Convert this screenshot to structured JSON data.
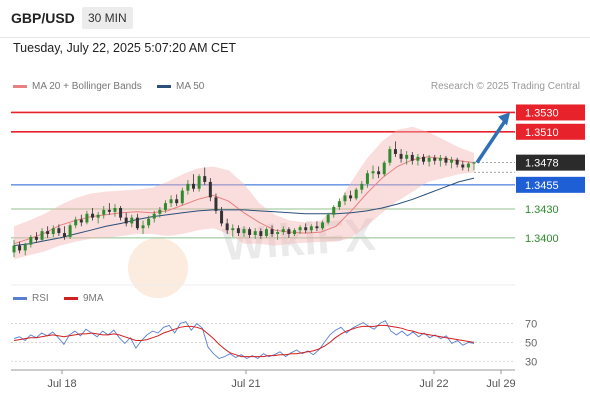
{
  "header": {
    "symbol": "GBP/USD",
    "timeframe": "30 MIN"
  },
  "datetime": "Tuesday, July 22, 2025 5:07:20 AM CET",
  "copyright": "Research © 2025 Trading Central",
  "watermark": "WikiFX",
  "colors": {
    "resistance": "#e8222a",
    "support_line": "#1f5fd6",
    "support_level": "#8fc08f",
    "support_text": "#2e8b2e",
    "last": "#2b2b2b",
    "ma20": "#e88080",
    "ma50": "#2a4f7a",
    "rsi": "#5b7fd0",
    "rsi_ma": "#d02020",
    "bullish": "#2e8b2e",
    "bearish": "#333333",
    "arrow": "#2f6fb5"
  },
  "chart_data": [
    {
      "type": "candlestick",
      "title": "GBP/USD",
      "x_ticks": [
        "Jul 18",
        "Jul 21",
        "Jul 22",
        "Jul 29"
      ],
      "legend": [
        "MA 20 + Bollinger Bands",
        "MA 50"
      ],
      "levels": [
        {
          "label": "1.3530",
          "value": 1.353,
          "kind": "resistance"
        },
        {
          "label": "1.3510",
          "value": 1.351,
          "kind": "resistance"
        },
        {
          "label": "1.3478",
          "value": 1.3478,
          "kind": "last"
        },
        {
          "label": "1.3455",
          "value": 1.3455,
          "kind": "support_line"
        },
        {
          "label": "1.3430",
          "value": 1.343,
          "kind": "support"
        },
        {
          "label": "1.3400",
          "value": 1.34,
          "kind": "support"
        }
      ],
      "ylim": [
        1.3375,
        1.3545
      ],
      "arrow": {
        "from": 1.3478,
        "to": 1.353
      },
      "candles": [
        [
          1.3385,
          1.3398,
          1.338,
          1.3392
        ],
        [
          1.3392,
          1.3396,
          1.3384,
          1.3387
        ],
        [
          1.3387,
          1.3395,
          1.3382,
          1.3393
        ],
        [
          1.3393,
          1.3403,
          1.339,
          1.3401
        ],
        [
          1.3401,
          1.3406,
          1.3395,
          1.3398
        ],
        [
          1.3398,
          1.341,
          1.3396,
          1.3407
        ],
        [
          1.3407,
          1.3412,
          1.34,
          1.3404
        ],
        [
          1.3404,
          1.3413,
          1.3401,
          1.341
        ],
        [
          1.341,
          1.3414,
          1.3402,
          1.3405
        ],
        [
          1.3405,
          1.3412,
          1.3398,
          1.3401
        ],
        [
          1.3401,
          1.3415,
          1.3399,
          1.3413
        ],
        [
          1.3413,
          1.3422,
          1.341,
          1.3419
        ],
        [
          1.3419,
          1.3424,
          1.3412,
          1.3416
        ],
        [
          1.3416,
          1.3428,
          1.3414,
          1.3425
        ],
        [
          1.3425,
          1.3431,
          1.3418,
          1.3421
        ],
        [
          1.3421,
          1.3427,
          1.3415,
          1.3424
        ],
        [
          1.3424,
          1.3433,
          1.342,
          1.3429
        ],
        [
          1.3429,
          1.3436,
          1.3424,
          1.3427
        ],
        [
          1.3427,
          1.3435,
          1.3422,
          1.3431
        ],
        [
          1.3431,
          1.3433,
          1.3418,
          1.3421
        ],
        [
          1.3421,
          1.3426,
          1.3412,
          1.3415
        ],
        [
          1.3415,
          1.3424,
          1.3411,
          1.3421
        ],
        [
          1.3421,
          1.3425,
          1.3408,
          1.341
        ],
        [
          1.341,
          1.3418,
          1.3404,
          1.3413
        ],
        [
          1.3413,
          1.3423,
          1.341,
          1.342
        ],
        [
          1.342,
          1.3428,
          1.3416,
          1.3425
        ],
        [
          1.3425,
          1.3432,
          1.3421,
          1.3429
        ],
        [
          1.3429,
          1.3439,
          1.3426,
          1.3436
        ],
        [
          1.3436,
          1.3444,
          1.3432,
          1.344
        ],
        [
          1.344,
          1.3445,
          1.3433,
          1.3436
        ],
        [
          1.3436,
          1.3452,
          1.3434,
          1.3449
        ],
        [
          1.3449,
          1.346,
          1.3445,
          1.3456
        ],
        [
          1.3456,
          1.3466,
          1.3448,
          1.3451
        ],
        [
          1.3451,
          1.3466,
          1.3448,
          1.3464
        ],
        [
          1.3464,
          1.3473,
          1.3455,
          1.3458
        ],
        [
          1.3458,
          1.3462,
          1.3438,
          1.3442
        ],
        [
          1.3442,
          1.3446,
          1.3425,
          1.3428
        ],
        [
          1.3428,
          1.3432,
          1.3412,
          1.3415
        ],
        [
          1.3415,
          1.342,
          1.3404,
          1.3408
        ],
        [
          1.3408,
          1.3414,
          1.3401,
          1.341
        ],
        [
          1.341,
          1.3413,
          1.3402,
          1.3405
        ],
        [
          1.3405,
          1.3412,
          1.3401,
          1.3409
        ],
        [
          1.3409,
          1.3411,
          1.34,
          1.3403
        ],
        [
          1.3403,
          1.341,
          1.3399,
          1.3407
        ],
        [
          1.3407,
          1.341,
          1.3399,
          1.3402
        ],
        [
          1.3402,
          1.3411,
          1.34,
          1.3409
        ],
        [
          1.3409,
          1.3413,
          1.3401,
          1.3404
        ],
        [
          1.3404,
          1.3409,
          1.3398,
          1.3406
        ],
        [
          1.3406,
          1.3412,
          1.3403,
          1.3409
        ],
        [
          1.3409,
          1.3411,
          1.34,
          1.3404
        ],
        [
          1.3404,
          1.341,
          1.3402,
          1.3408
        ],
        [
          1.3408,
          1.3413,
          1.3404,
          1.3411
        ],
        [
          1.3411,
          1.3415,
          1.3405,
          1.3408
        ],
        [
          1.3408,
          1.3414,
          1.3405,
          1.3412
        ],
        [
          1.3412,
          1.3417,
          1.3407,
          1.341
        ],
        [
          1.341,
          1.3418,
          1.3408,
          1.3416
        ],
        [
          1.3416,
          1.3426,
          1.3414,
          1.3424
        ],
        [
          1.3424,
          1.3434,
          1.3421,
          1.3432
        ],
        [
          1.3432,
          1.3441,
          1.3429,
          1.3438
        ],
        [
          1.3438,
          1.3447,
          1.3434,
          1.3444
        ],
        [
          1.3444,
          1.3449,
          1.3438,
          1.3441
        ],
        [
          1.3441,
          1.3452,
          1.3439,
          1.345
        ],
        [
          1.345,
          1.3459,
          1.3446,
          1.3456
        ],
        [
          1.3456,
          1.347,
          1.3452,
          1.3467
        ],
        [
          1.3467,
          1.3475,
          1.3461,
          1.3469
        ],
        [
          1.3469,
          1.3474,
          1.3462,
          1.3466
        ],
        [
          1.3466,
          1.348,
          1.3464,
          1.3478
        ],
        [
          1.3478,
          1.3495,
          1.3475,
          1.3492
        ],
        [
          1.3492,
          1.35,
          1.3484,
          1.3487
        ],
        [
          1.3487,
          1.3492,
          1.3478,
          1.3482
        ],
        [
          1.3482,
          1.349,
          1.3476,
          1.3486
        ],
        [
          1.3486,
          1.3489,
          1.3476,
          1.348
        ],
        [
          1.348,
          1.3487,
          1.3475,
          1.3484
        ],
        [
          1.3484,
          1.3487,
          1.3476,
          1.3479
        ],
        [
          1.3479,
          1.3486,
          1.3474,
          1.3483
        ],
        [
          1.3483,
          1.3486,
          1.3476,
          1.348
        ],
        [
          1.348,
          1.3486,
          1.3474,
          1.3483
        ],
        [
          1.3483,
          1.3485,
          1.3475,
          1.3478
        ],
        [
          1.3478,
          1.3484,
          1.3472,
          1.3481
        ],
        [
          1.3481,
          1.3483,
          1.3473,
          1.3476
        ],
        [
          1.3476,
          1.348,
          1.347,
          1.3473
        ],
        [
          1.3473,
          1.3479,
          1.3469,
          1.3477
        ],
        [
          1.3477,
          1.3479,
          1.347,
          1.3478
        ]
      ],
      "ma20": [
        1.3394,
        1.3399,
        1.3405,
        1.3413,
        1.3418,
        1.3422,
        1.3424,
        1.3426,
        1.3427,
        1.3426,
        1.3428,
        1.3434,
        1.344,
        1.3444,
        1.3438,
        1.3426,
        1.3416,
        1.3408,
        1.3406,
        1.3405,
        1.3406,
        1.3412,
        1.3428,
        1.3446,
        1.3462,
        1.3474,
        1.3481,
        1.3484,
        1.3482,
        1.348,
        1.3478
      ],
      "bb_upper": [
        1.3412,
        1.3418,
        1.3425,
        1.3434,
        1.3441,
        1.3446,
        1.3448,
        1.3449,
        1.345,
        1.3452,
        1.3458,
        1.3466,
        1.3472,
        1.3474,
        1.347,
        1.3456,
        1.3436,
        1.3424,
        1.3418,
        1.3416,
        1.3418,
        1.3432,
        1.3458,
        1.3482,
        1.35,
        1.3512,
        1.3515,
        1.351,
        1.3502,
        1.3494,
        1.3488
      ],
      "bb_lower": [
        1.3378,
        1.3382,
        1.3386,
        1.3392,
        1.3396,
        1.3399,
        1.34,
        1.3402,
        1.3404,
        1.3404,
        1.3402,
        1.3404,
        1.3408,
        1.341,
        1.3404,
        1.3394,
        1.3394,
        1.3392,
        1.3394,
        1.3395,
        1.3396,
        1.3396,
        1.34,
        1.3412,
        1.3426,
        1.3438,
        1.3448,
        1.3458,
        1.3462,
        1.3466,
        1.3468
      ],
      "ma50": [
        1.3392,
        1.3394,
        1.3397,
        1.34,
        1.3404,
        1.3408,
        1.3412,
        1.3415,
        1.3419,
        1.3422,
        1.3424,
        1.3426,
        1.3428,
        1.3429,
        1.3429,
        1.3429,
        1.3428,
        1.3427,
        1.3426,
        1.3425,
        1.3425,
        1.3425,
        1.3426,
        1.3428,
        1.3431,
        1.3435,
        1.344,
        1.3446,
        1.3452,
        1.3458,
        1.3462
      ]
    },
    {
      "type": "line",
      "legend": [
        "RSI",
        "9MA"
      ],
      "y_ticks": [
        "70",
        "50",
        "30"
      ],
      "ylim": [
        25,
        78
      ],
      "series": [
        {
          "name": "RSI",
          "values": [
            54,
            56,
            52,
            58,
            55,
            60,
            57,
            61,
            55,
            48,
            58,
            62,
            57,
            64,
            60,
            56,
            62,
            58,
            63,
            55,
            49,
            55,
            44,
            52,
            58,
            62,
            60,
            66,
            68,
            60,
            70,
            72,
            63,
            70,
            65,
            45,
            38,
            33,
            35,
            38,
            34,
            37,
            33,
            36,
            33,
            38,
            35,
            37,
            40,
            35,
            39,
            42,
            38,
            41,
            37,
            42,
            50,
            58,
            63,
            66,
            60,
            65,
            68,
            71,
            67,
            64,
            70,
            73,
            62,
            58,
            62,
            57,
            61,
            56,
            60,
            55,
            58,
            54,
            57,
            49,
            52,
            47,
            50,
            49
          ]
        },
        {
          "name": "9MA",
          "values": [
            52,
            53,
            54,
            55,
            55,
            56,
            57,
            58,
            57,
            56,
            57,
            58,
            59,
            59,
            60,
            59,
            58,
            58,
            59,
            58,
            56,
            54,
            52,
            52,
            53,
            55,
            57,
            60,
            62,
            64,
            66,
            67,
            67,
            66,
            64,
            59,
            54,
            48,
            43,
            39,
            37,
            35,
            35,
            35,
            35,
            35,
            36,
            36,
            37,
            37,
            38,
            38,
            39,
            40,
            41,
            43,
            46,
            50,
            55,
            59,
            62,
            64,
            66,
            67,
            67,
            67,
            68,
            68,
            67,
            66,
            65,
            63,
            62,
            60,
            59,
            58,
            57,
            56,
            55,
            54,
            53,
            52,
            51,
            50
          ]
        }
      ]
    }
  ]
}
